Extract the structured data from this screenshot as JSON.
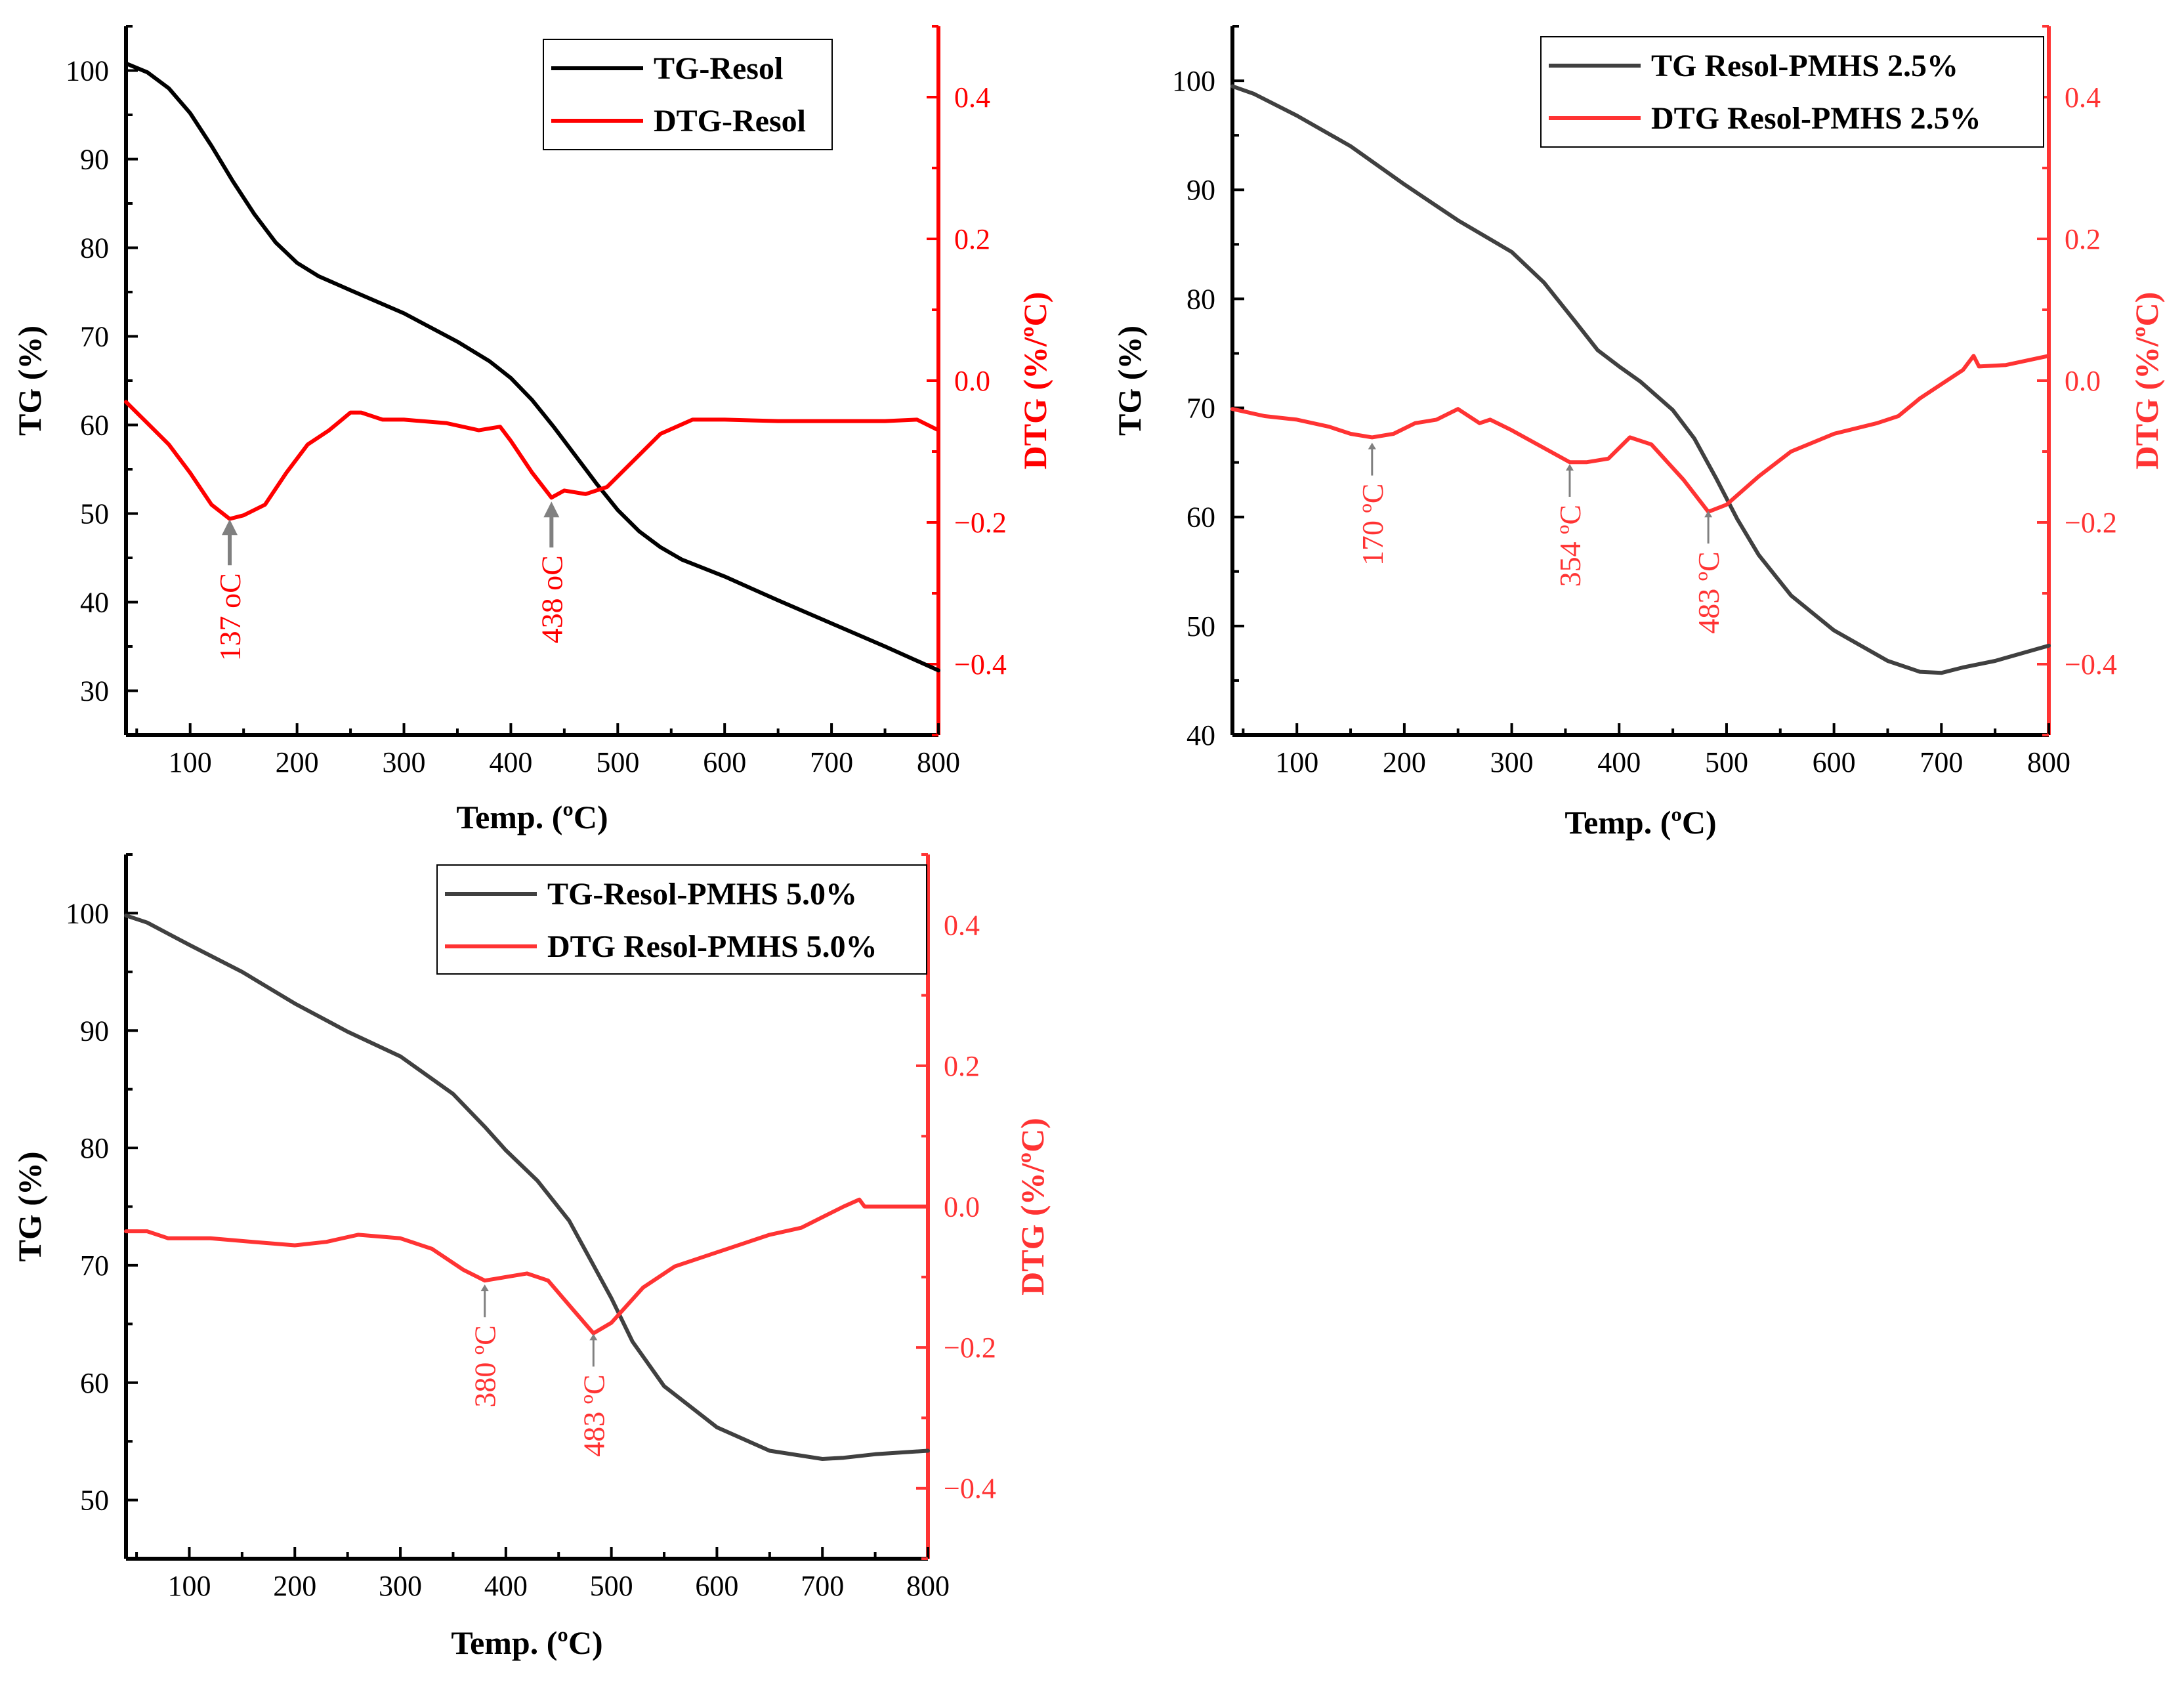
{
  "chart_data": [
    {
      "type": "line",
      "panel": "top-left",
      "xlabel": "Temp. (ºC)",
      "ylabel": "TG (%)",
      "y2label": "DTG (%/ºC)",
      "xlim": [
        40,
        800
      ],
      "ylim": [
        25,
        105
      ],
      "y2lim": [
        -0.5,
        0.5
      ],
      "xticks": [
        100,
        200,
        300,
        400,
        500,
        600,
        700,
        800
      ],
      "yticks": [
        30,
        40,
        50,
        60,
        70,
        80,
        90,
        100
      ],
      "y2ticks": [
        -0.4,
        -0.2,
        0.0,
        0.2,
        0.4
      ],
      "y2tick_labels": [
        "−0.4",
        "−0.2",
        "0.0",
        "0.2",
        "0.4"
      ],
      "legend_position": "top-right",
      "colors": {
        "tg": "#000000",
        "dtg": "#ff0000",
        "axis": "#000000",
        "y2axis": "#ff0000",
        "arrow": "#808080"
      },
      "series": [
        {
          "name": "TG-Resol",
          "axis": "left",
          "x": [
            40,
            60,
            80,
            100,
            120,
            140,
            160,
            180,
            200,
            220,
            250,
            300,
            350,
            380,
            400,
            420,
            440,
            460,
            480,
            500,
            520,
            540,
            560,
            600,
            650,
            700,
            750,
            800
          ],
          "values": [
            100.8,
            99.8,
            98,
            95.2,
            91.5,
            87.5,
            83.8,
            80.6,
            78.3,
            76.8,
            75.2,
            72.6,
            69.4,
            67.2,
            65.3,
            62.8,
            59.8,
            56.6,
            53.4,
            50.4,
            48.0,
            46.2,
            44.8,
            42.9,
            40.2,
            37.6,
            35.0,
            32.3
          ]
        },
        {
          "name": "DTG-Resol",
          "axis": "right",
          "x": [
            40,
            60,
            80,
            100,
            120,
            137,
            150,
            170,
            190,
            210,
            230,
            250,
            260,
            280,
            300,
            340,
            370,
            390,
            400,
            420,
            438,
            450,
            470,
            490,
            510,
            540,
            570,
            600,
            650,
            700,
            750,
            780,
            800
          ],
          "values": [
            -0.03,
            -0.06,
            -0.09,
            -0.13,
            -0.175,
            -0.195,
            -0.19,
            -0.175,
            -0.13,
            -0.09,
            -0.07,
            -0.045,
            -0.045,
            -0.055,
            -0.055,
            -0.06,
            -0.07,
            -0.065,
            -0.085,
            -0.13,
            -0.165,
            -0.155,
            -0.16,
            -0.15,
            -0.12,
            -0.075,
            -0.055,
            -0.055,
            -0.057,
            -0.057,
            -0.057,
            -0.055,
            -0.07
          ]
        }
      ],
      "annotations": [
        {
          "text": "137 oC",
          "x": 137,
          "y2": -0.19
        },
        {
          "text": "438 oC",
          "x": 438,
          "y2": -0.165
        }
      ]
    },
    {
      "type": "line",
      "panel": "top-right",
      "xlabel": "Temp. (ºC)",
      "ylabel": "TG (%)",
      "y2label": "DTG (%/ºC)",
      "xlim": [
        40,
        800
      ],
      "ylim": [
        40,
        105
      ],
      "y2lim": [
        -0.5,
        0.5
      ],
      "xticks": [
        100,
        200,
        300,
        400,
        500,
        600,
        700,
        800
      ],
      "yticks": [
        40,
        50,
        60,
        70,
        80,
        90,
        100
      ],
      "y2ticks": [
        -0.4,
        -0.2,
        0.0,
        0.2,
        0.4
      ],
      "y2tick_labels": [
        "−0.4",
        "−0.2",
        "0.0",
        "0.2",
        "0.4"
      ],
      "legend_position": "top-right",
      "colors": {
        "tg": "#404040",
        "dtg": "#ff3333",
        "axis": "#000000",
        "y2axis": "#ff3333",
        "arrow": "#808080"
      },
      "series": [
        {
          "name": "TG Resol-PMHS 2.5%",
          "axis": "left",
          "x": [
            40,
            60,
            100,
            150,
            200,
            250,
            300,
            330,
            360,
            380,
            400,
            420,
            450,
            470,
            490,
            510,
            530,
            560,
            600,
            650,
            680,
            700,
            720,
            750,
            800
          ],
          "values": [
            99.5,
            98.8,
            96.8,
            94,
            90.5,
            87.2,
            84.3,
            81.5,
            77.8,
            75.3,
            73.8,
            72.4,
            69.8,
            67.2,
            63.6,
            59.8,
            56.5,
            52.8,
            49.6,
            46.8,
            45.8,
            45.7,
            46.2,
            46.8,
            48.2
          ]
        },
        {
          "name": "DTG Resol-PMHS 2.5%",
          "axis": "right",
          "x": [
            40,
            70,
            100,
            130,
            150,
            170,
            190,
            210,
            230,
            250,
            270,
            280,
            300,
            330,
            354,
            370,
            390,
            410,
            430,
            460,
            483,
            500,
            530,
            560,
            600,
            640,
            660,
            680,
            700,
            720,
            730,
            735,
            760,
            800
          ],
          "values": [
            -0.04,
            -0.05,
            -0.055,
            -0.065,
            -0.075,
            -0.08,
            -0.075,
            -0.06,
            -0.055,
            -0.04,
            -0.06,
            -0.055,
            -0.07,
            -0.095,
            -0.115,
            -0.115,
            -0.11,
            -0.08,
            -0.09,
            -0.14,
            -0.185,
            -0.175,
            -0.135,
            -0.1,
            -0.075,
            -0.06,
            -0.05,
            -0.025,
            -0.005,
            0.015,
            0.035,
            0.02,
            0.022,
            0.035
          ]
        }
      ],
      "annotations": [
        {
          "text": "170 ºC",
          "x": 170,
          "y2": -0.082
        },
        {
          "text": "354 ºC",
          "x": 354,
          "y2": -0.112
        },
        {
          "text": "483 ºC",
          "x": 483,
          "y2": -0.178
        }
      ]
    },
    {
      "type": "line",
      "panel": "bottom-left",
      "xlabel": "Temp. (ºC)",
      "ylabel": "TG (%)",
      "y2label": "DTG (%/ºC)",
      "xlim": [
        40,
        800
      ],
      "ylim": [
        45,
        105
      ],
      "y2lim": [
        -0.5,
        0.5
      ],
      "xticks": [
        100,
        200,
        300,
        400,
        500,
        600,
        700,
        800
      ],
      "yticks": [
        50,
        60,
        70,
        80,
        90,
        100
      ],
      "y2ticks": [
        -0.4,
        -0.2,
        0.0,
        0.2,
        0.4
      ],
      "y2tick_labels": [
        "−0.4",
        "−0.2",
        "0.0",
        "0.2",
        "0.4"
      ],
      "legend_position": "top-right",
      "colors": {
        "tg": "#404040",
        "dtg": "#ff3333",
        "axis": "#000000",
        "y2axis": "#ff3333",
        "arrow": "#808080"
      },
      "series": [
        {
          "name": "TG-Resol-PMHS 5.0%",
          "axis": "left",
          "x": [
            40,
            60,
            100,
            150,
            200,
            250,
            300,
            350,
            380,
            400,
            430,
            460,
            480,
            500,
            520,
            550,
            600,
            650,
            700,
            720,
            750,
            800
          ],
          "values": [
            99.8,
            99.2,
            97.3,
            95.0,
            92.3,
            89.9,
            87.8,
            84.6,
            81.8,
            79.8,
            77.2,
            73.8,
            70.5,
            67.2,
            63.5,
            59.7,
            56.2,
            54.2,
            53.5,
            53.6,
            53.9,
            54.2
          ]
        },
        {
          "name": "DTG Resol-PMHS 5.0%",
          "axis": "right",
          "x": [
            40,
            60,
            80,
            120,
            160,
            200,
            230,
            260,
            300,
            330,
            360,
            380,
            400,
            420,
            440,
            460,
            483,
            500,
            530,
            560,
            600,
            650,
            680,
            700,
            720,
            735,
            740,
            760,
            800
          ],
          "values": [
            -0.035,
            -0.035,
            -0.045,
            -0.045,
            -0.05,
            -0.055,
            -0.05,
            -0.04,
            -0.045,
            -0.06,
            -0.09,
            -0.105,
            -0.1,
            -0.095,
            -0.105,
            -0.14,
            -0.18,
            -0.165,
            -0.115,
            -0.085,
            -0.065,
            -0.04,
            -0.03,
            -0.015,
            0.0,
            0.01,
            0.0,
            0.0,
            0.0
          ]
        }
      ],
      "annotations": [
        {
          "text": "380 ºC",
          "x": 380,
          "y2": -0.105
        },
        {
          "text": "483 ºC",
          "x": 483,
          "y2": -0.175
        }
      ]
    }
  ]
}
